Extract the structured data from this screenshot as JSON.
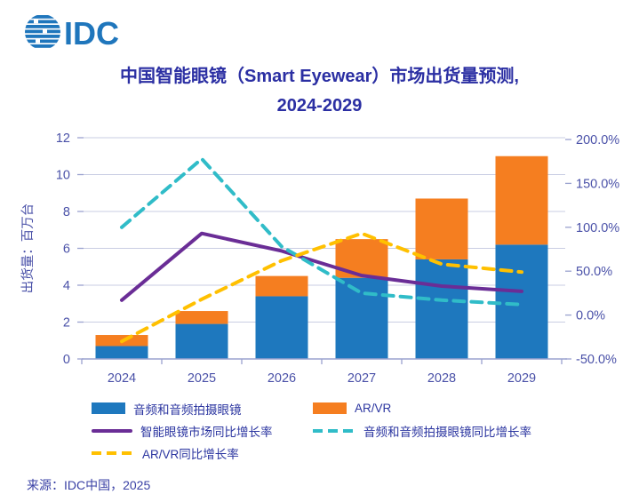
{
  "logo": {
    "text": "IDC"
  },
  "title": {
    "line1": "中国智能眼镜（Smart Eyewear）市场出货量预测,",
    "line2": "2024-2029"
  },
  "source": "来源：IDC中国，2025",
  "colors": {
    "logo": "#1F76BC",
    "title": "#2B2FA3",
    "axis_text": "#4A51A8",
    "grid": "#C9CDE3",
    "axis_line": "#9AA2CF",
    "legend_text": "#2B35A0",
    "source_text": "#3A41A5",
    "bar_blue": "#1E78BE",
    "bar_orange": "#F57E20",
    "line_purple": "#6A2D96",
    "line_teal": "#30BCC8",
    "line_yellow": "#FFC000"
  },
  "chart_data": {
    "type": "bar",
    "subtype": "stacked-bars-with-lines",
    "categories": [
      "2024",
      "2025",
      "2026",
      "2027",
      "2028",
      "2029"
    ],
    "bar_series": [
      {
        "name": "音频和音频拍摄眼镜",
        "color": "#1E78BE",
        "axis": "left",
        "values": [
          0.7,
          1.9,
          3.4,
          4.4,
          5.4,
          6.2
        ]
      },
      {
        "name": "AR/VR",
        "color": "#F57E20",
        "axis": "left",
        "values": [
          0.6,
          0.7,
          1.1,
          2.1,
          3.3,
          4.8
        ]
      }
    ],
    "line_series": [
      {
        "name": "智能眼镜市场同比增长率",
        "color": "#6A2D96",
        "style": "solid",
        "axis": "right",
        "values": [
          17,
          93,
          73,
          45,
          33,
          27
        ]
      },
      {
        "name": "音频和音频拍摄眼镜同比增长率",
        "color": "#30BCC8",
        "style": "dashed",
        "axis": "right",
        "values": [
          100,
          178,
          78,
          25,
          17,
          12
        ]
      },
      {
        "name": "AR/VR同比增长率",
        "color": "#FFC000",
        "style": "dashed",
        "axis": "right",
        "values": [
          -30,
          18,
          62,
          93,
          58,
          49
        ]
      }
    ],
    "left_axis": {
      "label": "出货量：百万台",
      "min": 0,
      "max": 12,
      "ticks": [
        0,
        2,
        4,
        6,
        8,
        10,
        12
      ]
    },
    "right_axis": {
      "min": -50,
      "max": 200,
      "tick_labels": [
        "200.0%",
        "150.0%",
        "100.0%",
        "50.0%",
        "0.0%",
        "-50.0%"
      ],
      "tick_values": [
        200,
        150,
        100,
        50,
        0,
        -50
      ],
      "unit": "%"
    },
    "grid": true,
    "legend_position": "bottom"
  }
}
